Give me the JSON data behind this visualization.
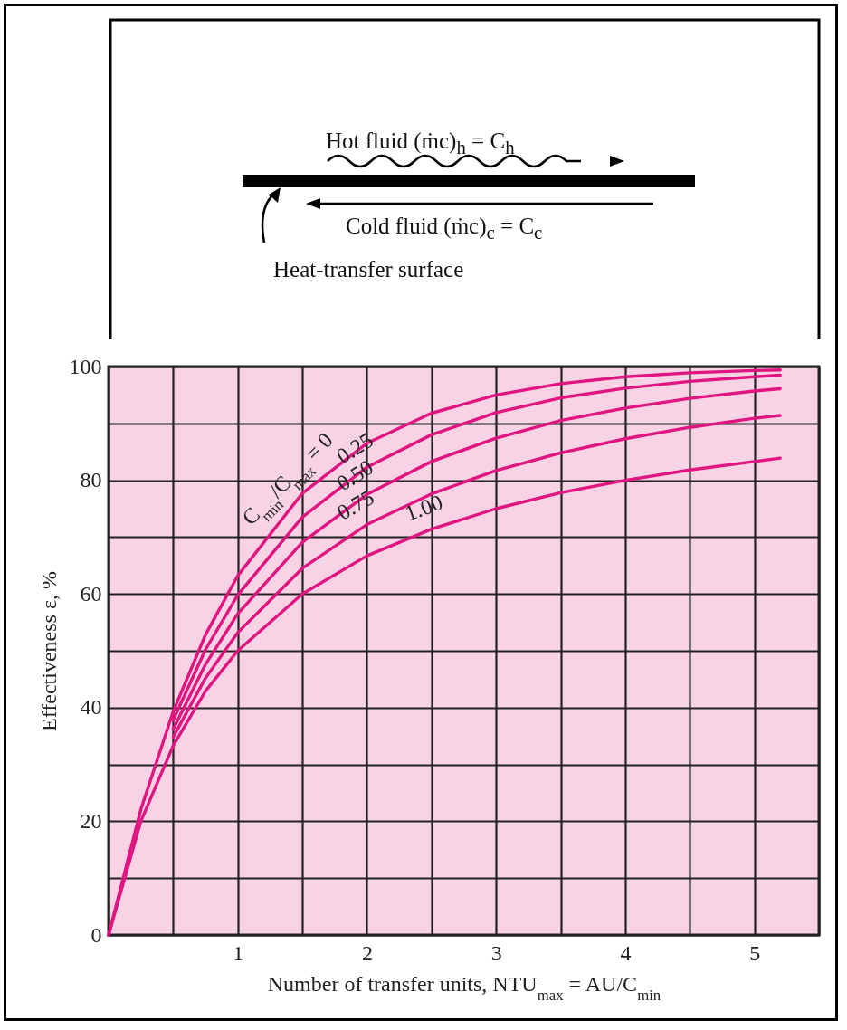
{
  "chart_data": {
    "type": "line",
    "xlabel": "Number of transfer units, NTU$_{max}$ = AU/C$_{min}$",
    "ylabel": "Effectiveness ε, %",
    "annotations": [
      "Hot fluid (ṁc)$_{h}$ = C$_{h}$",
      "Cold fluid (ṁc)$_{c}$ = C$_{c}$",
      "Heat-transfer surface"
    ],
    "xlim": [
      0,
      5.5
    ],
    "ylim": [
      0,
      100
    ],
    "xticks": [
      {
        "value": 0,
        "label": null
      },
      {
        "value": 0.5,
        "label": null
      },
      1,
      {
        "value": 1.5,
        "label": null
      },
      2,
      {
        "value": 2.5,
        "label": null
      },
      3,
      {
        "value": 3.5,
        "label": null
      },
      4,
      {
        "value": 4.5,
        "label": null
      },
      5,
      {
        "value": 5.5,
        "label": null
      }
    ],
    "yticks": [
      0,
      {
        "value": 10,
        "label": null
      },
      20,
      {
        "value": 30,
        "label": null
      },
      40,
      {
        "value": 50,
        "label": null
      },
      60,
      {
        "value": 70,
        "label": null
      },
      80,
      {
        "value": 90,
        "label": null
      },
      100
    ],
    "grid": true,
    "legend": false,
    "marker": "none",
    "line_style": "solid",
    "series": [
      {
        "name": "C$_{min}$/C$_{max}$ = 0",
        "color": "#e0157f",
        "x": [
          0,
          0.25,
          0.5,
          0.75,
          1,
          1.5,
          2,
          2.5,
          3,
          3.5,
          4,
          4.5,
          5,
          5.2
        ],
        "values": [
          0,
          22.1,
          39.3,
          52.8,
          63.2,
          77.7,
          86.5,
          91.8,
          95.0,
          97.0,
          98.2,
          98.9,
          99.3,
          99.4
        ]
      },
      {
        "name": "0.25",
        "color": "#e0157f",
        "x": [
          0.5,
          0.75,
          1,
          1.5,
          2,
          2.5,
          3,
          3.5,
          4,
          4.5,
          5,
          5.2
        ],
        "values": [
          37.8,
          50.2,
          59.8,
          73.5,
          82.3,
          88.0,
          91.9,
          94.5,
          96.2,
          97.4,
          98.2,
          98.5
        ]
      },
      {
        "name": "0.50",
        "color": "#e0157f",
        "x": [
          0.5,
          0.75,
          1,
          1.5,
          2,
          2.5,
          3,
          3.5,
          4,
          4.5,
          5,
          5.2
        ],
        "values": [
          36.2,
          47.6,
          56.5,
          69.1,
          77.5,
          83.3,
          87.4,
          90.5,
          92.7,
          94.4,
          95.7,
          96.1
        ]
      },
      {
        "name": "0.75",
        "color": "#e0157f",
        "x": [
          0.5,
          0.75,
          1,
          1.5,
          2,
          2.5,
          3,
          3.5,
          4,
          4.5,
          5,
          5.2
        ],
        "values": [
          34.8,
          45.2,
          53.2,
          64.5,
          72.2,
          77.6,
          81.7,
          84.8,
          87.3,
          89.3,
          90.9,
          91.4
        ]
      },
      {
        "name": "1.00",
        "color": "#e0157f",
        "x": [
          0,
          0.25,
          0.5,
          0.75,
          1,
          1.5,
          2,
          2.5,
          3,
          3.5,
          4,
          4.5,
          5,
          5.2
        ],
        "values": [
          0,
          20.0,
          33.3,
          42.9,
          50.0,
          60.0,
          66.7,
          71.4,
          75.0,
          77.8,
          80.0,
          81.8,
          83.3,
          83.9
        ]
      }
    ]
  }
}
